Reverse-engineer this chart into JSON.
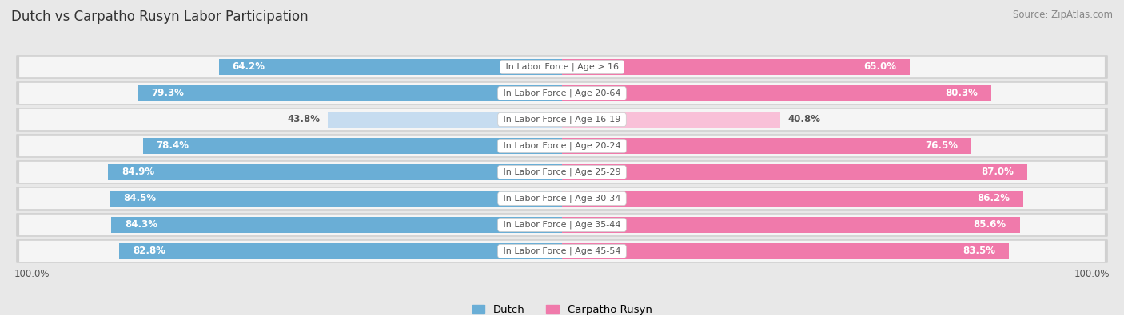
{
  "title": "Dutch vs Carpatho Rusyn Labor Participation",
  "source": "Source: ZipAtlas.com",
  "categories": [
    "In Labor Force | Age > 16",
    "In Labor Force | Age 20-64",
    "In Labor Force | Age 16-19",
    "In Labor Force | Age 20-24",
    "In Labor Force | Age 25-29",
    "In Labor Force | Age 30-34",
    "In Labor Force | Age 35-44",
    "In Labor Force | Age 45-54"
  ],
  "dutch_values": [
    64.2,
    79.3,
    43.8,
    78.4,
    84.9,
    84.5,
    84.3,
    82.8
  ],
  "rusyn_values": [
    65.0,
    80.3,
    40.8,
    76.5,
    87.0,
    86.2,
    85.6,
    83.5
  ],
  "dutch_color_full": "#6aaed6",
  "dutch_color_light": "#c6dcf0",
  "rusyn_color_full": "#f07aab",
  "rusyn_color_light": "#f9c0d8",
  "background_color": "#e8e8e8",
  "row_bg_color": "#f5f5f5",
  "row_border_color": "#d0d0d0",
  "label_white": "#ffffff",
  "label_dark": "#555555",
  "title_color": "#333333",
  "source_color": "#888888",
  "title_fontsize": 12,
  "source_fontsize": 8.5,
  "bar_label_fontsize": 8.5,
  "category_fontsize": 8,
  "legend_fontsize": 9.5,
  "axis_label_fontsize": 8.5,
  "bar_height": 0.62,
  "max_value": 100.0,
  "threshold_light": 55.0
}
